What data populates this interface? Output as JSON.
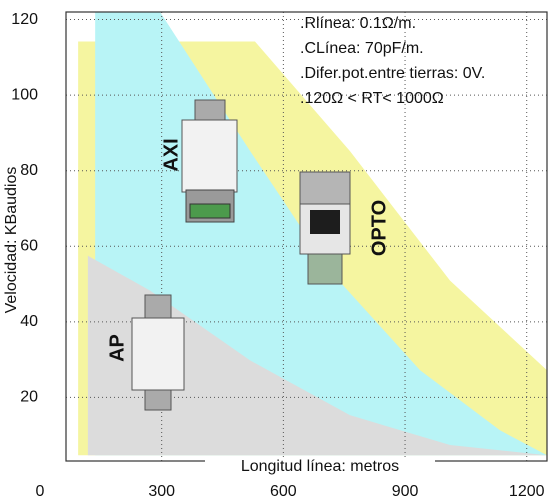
{
  "chart_data": {
    "type": "area",
    "xlabel": "Longitud línea:   metros",
    "ylabel": "Velocidad:  KBaudios",
    "xlim": [
      0,
      1250
    ],
    "ylim": [
      0,
      122
    ],
    "xticks": [
      0,
      300,
      600,
      900,
      1200
    ],
    "yticks": [
      20,
      40,
      60,
      80,
      100,
      120
    ],
    "grid": true,
    "series": [
      {
        "color": "#f5f5a0",
        "x": [
          94,
          94,
          530,
          764,
          1011,
          1250,
          1250
        ],
        "y": [
          4.7,
          114.2,
          114.2,
          85.2,
          50.9,
          27.2,
          4.7
        ]
      },
      {
        "color": "#b8f4f6",
        "x": [
          136,
          136,
          296,
          518,
          715,
          937,
          1134,
          1250
        ],
        "y": [
          4.7,
          122,
          122,
          85.2,
          53.5,
          27.2,
          11.3,
          4.7
        ]
      },
      {
        "color": "#dcdcdc",
        "x": [
          118,
          118,
          271,
          518,
          764,
          1011,
          1250
        ],
        "y": [
          4.7,
          57.5,
          48.3,
          29.8,
          15.3,
          7.4,
          4.7
        ]
      }
    ],
    "annotations": [
      ".Rlínea: 0.1Ω/m.",
      ".CLínea: 70pF/m.",
      ".Difer.pot.entre tierras: 0V.",
      ".120Ω < RT< 1000Ω"
    ],
    "devices": [
      "AXI",
      "OPTO",
      "AP"
    ]
  }
}
